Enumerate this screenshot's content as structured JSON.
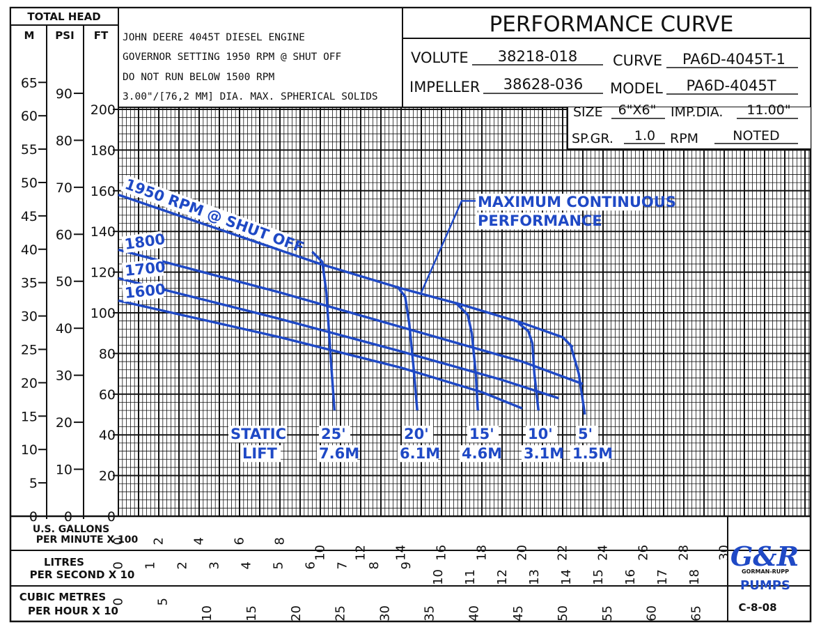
{
  "chart_data": {
    "type": "line",
    "title": "PERFORMANCE CURVE",
    "header": {
      "total_head_label": "TOTAL HEAD",
      "unit_m": "M",
      "unit_psi": "PSI",
      "unit_ft": "FT",
      "notes": [
        "JOHN DEERE 4045T DIESEL ENGINE",
        "GOVERNOR SETTING 1950 RPM @ SHUT OFF",
        "DO NOT RUN BELOW 1500 RPM",
        "3.00\"/[76,2 MM] DIA. MAX. SPHERICAL SOLIDS"
      ],
      "volute_label": "VOLUTE",
      "volute_value": "38218-018",
      "curve_label": "CURVE",
      "curve_value": "PA6D-4045T-1",
      "impeller_label": "IMPELLER",
      "impeller_value": "38628-036",
      "model_label": "MODEL",
      "model_value": "PA6D-4045T",
      "size_label": "SIZE",
      "size_value": "6\"X6\"",
      "impdia_label": "IMP.DIA.",
      "impdia_value": "11.00\"",
      "spgr_label": "SP.GR.",
      "spgr_value": "1.0",
      "rpm_label": "RPM",
      "rpm_value": "NOTED"
    },
    "xlabel": [
      "U.S. GALLONS",
      "PER MINUTE  X 100"
    ],
    "x_ticks": [
      0,
      2,
      4,
      6,
      8,
      10,
      12,
      14,
      16,
      18,
      20,
      22,
      24,
      26,
      28,
      30
    ],
    "xlim": [
      0,
      34
    ],
    "litres_label": [
      "LITRES",
      "PER SECOND  X 10"
    ],
    "litres_ticks": [
      0,
      1,
      2,
      3,
      4,
      5,
      6,
      7,
      8,
      9,
      10,
      11,
      12,
      13,
      14,
      15,
      16,
      17,
      18
    ],
    "m3_label": [
      "CUBIC METRES",
      "PER HOUR X 10"
    ],
    "m3_ticks": [
      0,
      5,
      10,
      15,
      20,
      25,
      30,
      35,
      40,
      45,
      50,
      55,
      60,
      65
    ],
    "ylabel": "TOTAL HEAD (FT)",
    "ylim": [
      0,
      200
    ],
    "y_ticks_ft": [
      0,
      20,
      40,
      60,
      80,
      100,
      120,
      140,
      160,
      180,
      200
    ],
    "y_ticks_psi": [
      0,
      10,
      20,
      30,
      40,
      50,
      60,
      70,
      80,
      90
    ],
    "y_ticks_m": [
      0,
      5,
      10,
      15,
      20,
      25,
      30,
      35,
      40,
      45,
      50,
      55,
      60,
      65
    ],
    "series": [
      {
        "name": "1950 RPM @ SHUT OFF",
        "x": [
          0,
          5,
          10,
          14,
          17,
          20,
          22,
          22.5
        ],
        "y": [
          158,
          141,
          124,
          112,
          104,
          95,
          88,
          83
        ]
      },
      {
        "name": "1800",
        "x": [
          0,
          8,
          14,
          20,
          23
        ],
        "y": [
          131,
          110,
          93,
          76,
          65
        ]
      },
      {
        "name": "1700",
        "x": [
          0,
          8,
          14,
          19,
          21.8
        ],
        "y": [
          117,
          97,
          81,
          67,
          58
        ]
      },
      {
        "name": "1600",
        "x": [
          0,
          8,
          14,
          18,
          20
        ],
        "y": [
          106,
          88,
          73,
          61,
          53
        ]
      }
    ],
    "lift_curves": [
      {
        "name": "25'",
        "x": [
          9.6,
          10.1,
          10.3,
          10.5,
          10.7
        ],
        "y": [
          130,
          125,
          110,
          80,
          52
        ]
      },
      {
        "name": "20'",
        "x": [
          13.8,
          14.2,
          14.4,
          14.6,
          14.8
        ],
        "y": [
          113,
          108,
          95,
          75,
          52
        ]
      },
      {
        "name": "15'",
        "x": [
          16.7,
          17.3,
          17.5,
          17.7,
          17.8
        ],
        "y": [
          105,
          99,
          90,
          70,
          52
        ]
      },
      {
        "name": "10'",
        "x": [
          19.8,
          20.3,
          20.5,
          20.6,
          20.8
        ],
        "y": [
          95,
          91,
          85,
          70,
          52
        ]
      },
      {
        "name": "5'",
        "x": [
          22.4,
          22.8,
          23.1
        ],
        "y": [
          84,
          70,
          50
        ]
      }
    ],
    "annotations": {
      "max_cont": [
        "MAXIMUM CONTINUOUS",
        "PERFORMANCE"
      ],
      "static_lift": [
        "STATIC",
        "LIFT"
      ],
      "lift_labels": [
        {
          "ft": "25'",
          "m": "7.6M"
        },
        {
          "ft": "20'",
          "m": "6.1M"
        },
        {
          "ft": "15'",
          "m": "4.6M"
        },
        {
          "ft": "10'",
          "m": "3.1M"
        },
        {
          "ft": "5'",
          "m": "1.5M"
        }
      ]
    }
  },
  "brand": {
    "line1": "G",
    "line2": "R",
    "sub": "GORMAN-RUPP",
    "pumps": "PUMPS"
  },
  "doc_code": "C-8-08",
  "colors": {
    "curve": "#1f49c5",
    "grid": "#111111"
  }
}
